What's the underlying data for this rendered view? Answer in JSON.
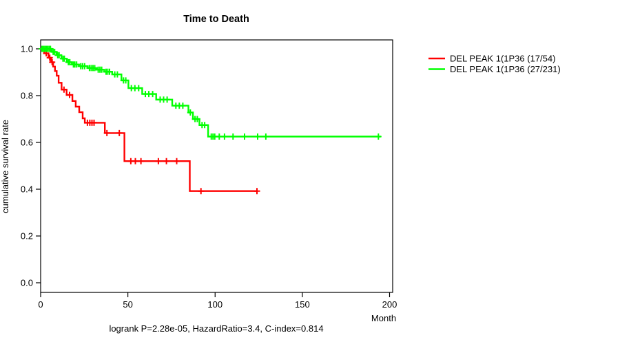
{
  "chart_data": {
    "type": "line",
    "subtype": "kaplan-meier-step",
    "title": "Time to Death",
    "xlabel": "Month",
    "ylabel": "cumulative survival rate",
    "footer": "logrank P=2.28e-05, HazardRatio=3.4, C-index=0.814",
    "xlim": [
      0,
      200
    ],
    "ylim": [
      0,
      1
    ],
    "xticks": [
      0,
      50,
      100,
      150,
      200
    ],
    "yticks": [
      0.0,
      0.2,
      0.4,
      0.6,
      0.8,
      1.0
    ],
    "grid": false,
    "legend_position": "right-outside",
    "axis_color": "#000000",
    "series": [
      {
        "name": "DEL PEAK  1(1P36 (17/54)",
        "color": "#ff0000",
        "steps": [
          [
            0,
            1.0
          ],
          [
            2,
            0.981
          ],
          [
            4.5,
            0.962
          ],
          [
            6,
            0.943
          ],
          [
            7.2,
            0.924
          ],
          [
            8.2,
            0.905
          ],
          [
            9.2,
            0.885
          ],
          [
            10.3,
            0.855
          ],
          [
            12,
            0.826
          ],
          [
            14.9,
            0.803
          ],
          [
            18.2,
            0.777
          ],
          [
            20.1,
            0.753
          ],
          [
            22.1,
            0.729
          ],
          [
            24.1,
            0.703
          ],
          [
            25.3,
            0.684
          ],
          [
            36.8,
            0.64
          ],
          [
            48,
            0.52
          ],
          [
            85.5,
            0.392
          ]
        ],
        "end_time": 124,
        "censors": [
          [
            3.2,
            0.981
          ],
          [
            5.2,
            0.962
          ],
          [
            6.6,
            0.943
          ],
          [
            13.4,
            0.826
          ],
          [
            16.6,
            0.803
          ],
          [
            26.8,
            0.684
          ],
          [
            28.2,
            0.684
          ],
          [
            29.4,
            0.684
          ],
          [
            30.6,
            0.684
          ],
          [
            38,
            0.64
          ],
          [
            45.1,
            0.64
          ],
          [
            51.7,
            0.52
          ],
          [
            54.3,
            0.52
          ],
          [
            57.5,
            0.52
          ],
          [
            67.5,
            0.52
          ],
          [
            72.1,
            0.52
          ],
          [
            78,
            0.52
          ],
          [
            91.9,
            0.392
          ],
          [
            124,
            0.392
          ]
        ]
      },
      {
        "name": "DEL PEAK  1(1P36 (27/231)",
        "color": "#00ff00",
        "steps": [
          [
            0,
            1.0
          ],
          [
            6.3,
            0.987
          ],
          [
            9.1,
            0.973
          ],
          [
            11.9,
            0.958
          ],
          [
            15.1,
            0.943
          ],
          [
            17.9,
            0.933
          ],
          [
            22,
            0.926
          ],
          [
            27,
            0.918
          ],
          [
            32,
            0.911
          ],
          [
            36.5,
            0.902
          ],
          [
            41,
            0.891
          ],
          [
            46.3,
            0.865
          ],
          [
            50.3,
            0.832
          ],
          [
            58.2,
            0.807
          ],
          [
            66.2,
            0.783
          ],
          [
            75.4,
            0.757
          ],
          [
            84.7,
            0.728
          ],
          [
            87.3,
            0.7
          ],
          [
            91,
            0.674
          ],
          [
            96,
            0.625
          ]
        ],
        "end_time": 195,
        "censors": [
          [
            0.8,
            1.0
          ],
          [
            1.6,
            1.0
          ],
          [
            2.4,
            1.0
          ],
          [
            3.2,
            1.0
          ],
          [
            4.0,
            1.0
          ],
          [
            4.8,
            1.0
          ],
          [
            5.6,
            1.0
          ],
          [
            7.2,
            0.987
          ],
          [
            8.0,
            0.987
          ],
          [
            9.8,
            0.973
          ],
          [
            10.6,
            0.973
          ],
          [
            12.8,
            0.958
          ],
          [
            13.6,
            0.958
          ],
          [
            15.9,
            0.943
          ],
          [
            16.7,
            0.943
          ],
          [
            18.8,
            0.933
          ],
          [
            19.6,
            0.933
          ],
          [
            20.6,
            0.933
          ],
          [
            23,
            0.926
          ],
          [
            24,
            0.926
          ],
          [
            25.2,
            0.926
          ],
          [
            28,
            0.918
          ],
          [
            29,
            0.918
          ],
          [
            30,
            0.918
          ],
          [
            31,
            0.918
          ],
          [
            33,
            0.911
          ],
          [
            34,
            0.911
          ],
          [
            35,
            0.911
          ],
          [
            37.5,
            0.902
          ],
          [
            38.5,
            0.902
          ],
          [
            39.5,
            0.902
          ],
          [
            42.5,
            0.891
          ],
          [
            44,
            0.891
          ],
          [
            47.5,
            0.865
          ],
          [
            48.8,
            0.865
          ],
          [
            52,
            0.832
          ],
          [
            54,
            0.832
          ],
          [
            56.2,
            0.832
          ],
          [
            60,
            0.807
          ],
          [
            62,
            0.807
          ],
          [
            64.2,
            0.807
          ],
          [
            68.5,
            0.783
          ],
          [
            70.5,
            0.783
          ],
          [
            72.5,
            0.783
          ],
          [
            77.5,
            0.757
          ],
          [
            79.5,
            0.757
          ],
          [
            81.5,
            0.757
          ],
          [
            85.8,
            0.728
          ],
          [
            88.5,
            0.7
          ],
          [
            89.8,
            0.7
          ],
          [
            92.5,
            0.674
          ],
          [
            94,
            0.674
          ],
          [
            97.8,
            0.625
          ],
          [
            98.8,
            0.625
          ],
          [
            99.8,
            0.625
          ],
          [
            102.4,
            0.625
          ],
          [
            105.4,
            0.625
          ],
          [
            110.3,
            0.625
          ],
          [
            116.9,
            0.625
          ],
          [
            124.4,
            0.625
          ],
          [
            129.1,
            0.625
          ],
          [
            193.6,
            0.625
          ]
        ]
      }
    ]
  }
}
